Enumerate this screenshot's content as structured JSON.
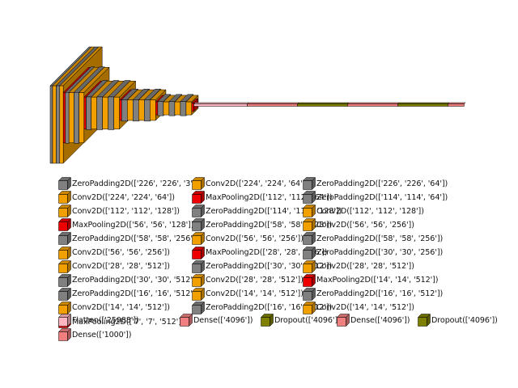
{
  "colors": {
    "ZeroPadding2D": "#808080",
    "Conv2D": "#f2a000",
    "MaxPooling2D": "#ee0000",
    "Flatten": "#ffb6c1",
    "Dense": "#f08080",
    "Dropout": "#808000"
  },
  "layers": [
    {
      "type": "ZeroPadding2D",
      "shape": "['226', '226', '3']"
    },
    {
      "type": "Conv2D",
      "shape": "['224', '224', '64']"
    },
    {
      "type": "ZeroPadding2D",
      "shape": "['226', '226', '64']"
    },
    {
      "type": "Conv2D",
      "shape": "['224', '224', '64']"
    },
    {
      "type": "MaxPooling2D",
      "shape": "['112', '112', '64']"
    },
    {
      "type": "ZeroPadding2D",
      "shape": "['114', '114', '64']"
    },
    {
      "type": "Conv2D",
      "shape": "['112', '112', '128']"
    },
    {
      "type": "ZeroPadding2D",
      "shape": "['114', '114', '128']"
    },
    {
      "type": "Conv2D",
      "shape": "['112', '112', '128']"
    },
    {
      "type": "MaxPooling2D",
      "shape": "['56', '56', '128']"
    },
    {
      "type": "ZeroPadding2D",
      "shape": "['58', '58', '128']"
    },
    {
      "type": "Conv2D",
      "shape": "['56', '56', '256']"
    },
    {
      "type": "ZeroPadding2D",
      "shape": "['58', '58', '256']"
    },
    {
      "type": "Conv2D",
      "shape": "['56', '56', '256']"
    },
    {
      "type": "ZeroPadding2D",
      "shape": "['58', '58', '256']"
    },
    {
      "type": "Conv2D",
      "shape": "['56', '56', '256']"
    },
    {
      "type": "MaxPooling2D",
      "shape": "['28', '28', '256']"
    },
    {
      "type": "ZeroPadding2D",
      "shape": "['30', '30', '256']"
    },
    {
      "type": "Conv2D",
      "shape": "['28', '28', '512']"
    },
    {
      "type": "ZeroPadding2D",
      "shape": "['30', '30', '512']"
    },
    {
      "type": "Conv2D",
      "shape": "['28', '28', '512']"
    },
    {
      "type": "ZeroPadding2D",
      "shape": "['30', '30', '512']"
    },
    {
      "type": "Conv2D",
      "shape": "['28', '28', '512']"
    },
    {
      "type": "MaxPooling2D",
      "shape": "['14', '14', '512']"
    },
    {
      "type": "ZeroPadding2D",
      "shape": "['16', '16', '512']"
    },
    {
      "type": "Conv2D",
      "shape": "['14', '14', '512']"
    },
    {
      "type": "ZeroPadding2D",
      "shape": "['16', '16', '512']"
    },
    {
      "type": "Conv2D",
      "shape": "['14', '14', '512']"
    },
    {
      "type": "ZeroPadding2D",
      "shape": "['16', '16', '512']"
    },
    {
      "type": "Conv2D",
      "shape": "['14', '14', '512']"
    },
    {
      "type": "MaxPooling2D",
      "shape": "['7', '7', '512']"
    },
    {
      "type": "Flatten",
      "shape": "['25088']"
    },
    {
      "type": "Dense",
      "shape": "['4096']"
    },
    {
      "type": "Dropout",
      "shape": "['4096']"
    },
    {
      "type": "Dense",
      "shape": "['4096']"
    },
    {
      "type": "Dropout",
      "shape": "['4096']"
    },
    {
      "type": "Dense",
      "shape": "['1000']"
    }
  ]
}
